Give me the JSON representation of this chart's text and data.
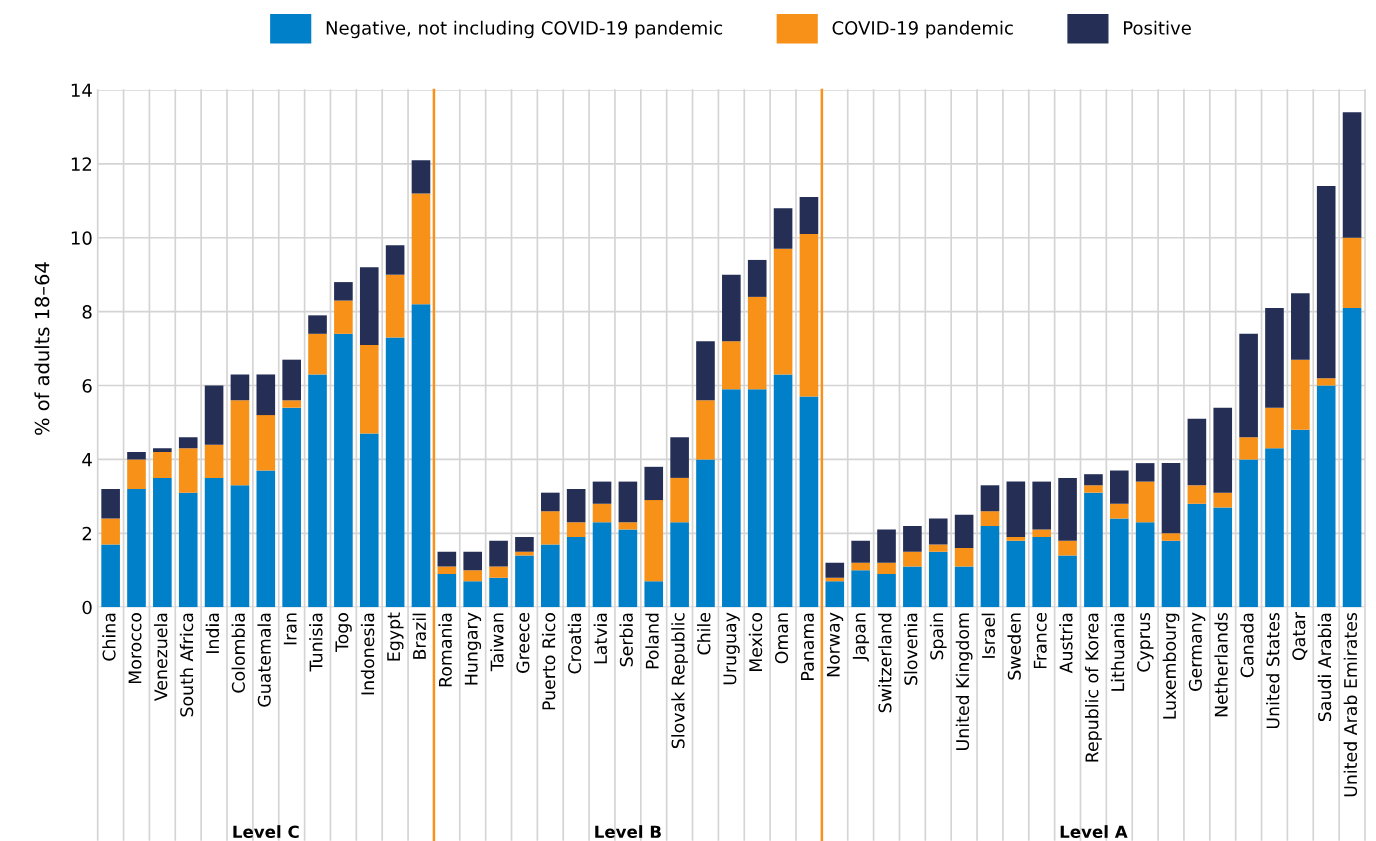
{
  "chart_data": {
    "type": "bar",
    "stacked": true,
    "ylabel": "% of adults 18–64",
    "categories": [
      "China",
      "Morocco",
      "Venezuela",
      "South Africa",
      "India",
      "Colombia",
      "Guatemala",
      "Iran",
      "Tunisia",
      "Togo",
      "Indonesia",
      "Egypt",
      "Brazil",
      "Romania",
      "Hungary",
      "Taiwan",
      "Greece",
      "Puerto Rico",
      "Croatia",
      "Latvia",
      "Serbia",
      "Poland",
      "Slovak Republic",
      "Chile",
      "Uruguay",
      "Mexico",
      "Oman",
      "Panama",
      "Norway",
      "Japan",
      "Switzerland",
      "Slovenia",
      "Spain",
      "United Kingdom",
      "Israel",
      "Sweden",
      "France",
      "Austria",
      "Republic of Korea",
      "Lithuania",
      "Cyprus",
      "Luxembourg",
      "Germany",
      "Netherlands",
      "Canada",
      "United States",
      "Qatar",
      "Saudi Arabia",
      "United Arab Emirates"
    ],
    "series": [
      {
        "name": "Negative, not including COVID-19 pandemic",
        "color": "#0080c8",
        "values": [
          1.7,
          3.2,
          3.5,
          3.1,
          3.5,
          3.3,
          3.7,
          5.4,
          6.3,
          7.4,
          4.7,
          7.3,
          8.2,
          0.9,
          0.7,
          0.8,
          1.4,
          1.7,
          1.9,
          2.3,
          2.1,
          0.7,
          2.3,
          4.0,
          5.9,
          5.9,
          6.3,
          5.7,
          0.7,
          1.0,
          0.9,
          1.1,
          1.5,
          1.1,
          2.2,
          1.8,
          1.9,
          1.4,
          3.1,
          2.4,
          2.3,
          1.8,
          2.8,
          2.7,
          4.0,
          4.3,
          4.8,
          6.0,
          8.1
        ]
      },
      {
        "name": "COVID-19 pandemic",
        "color": "#f89118",
        "values": [
          0.7,
          0.8,
          0.7,
          1.2,
          0.9,
          2.3,
          1.5,
          0.2,
          1.1,
          0.9,
          2.4,
          1.7,
          3.0,
          0.2,
          0.3,
          0.3,
          0.1,
          0.9,
          0.4,
          0.5,
          0.2,
          2.2,
          1.2,
          1.6,
          1.3,
          2.5,
          3.4,
          4.4,
          0.1,
          0.2,
          0.3,
          0.4,
          0.2,
          0.5,
          0.4,
          0.1,
          0.2,
          0.4,
          0.2,
          0.4,
          1.1,
          0.2,
          0.5,
          0.4,
          0.6,
          1.1,
          1.9,
          0.2,
          1.9
        ]
      },
      {
        "name": "Positive",
        "color": "#252f56",
        "values": [
          0.8,
          0.2,
          0.1,
          0.3,
          1.6,
          0.7,
          1.1,
          1.1,
          0.5,
          0.5,
          2.1,
          0.8,
          0.9,
          0.4,
          0.5,
          0.7,
          0.4,
          0.5,
          0.9,
          0.6,
          1.1,
          0.9,
          1.1,
          1.6,
          1.8,
          1.0,
          1.1,
          1.0,
          0.4,
          0.6,
          0.9,
          0.7,
          0.7,
          0.9,
          0.7,
          1.5,
          1.3,
          1.7,
          0.3,
          0.9,
          0.5,
          1.9,
          1.8,
          2.3,
          2.8,
          2.7,
          1.8,
          5.2,
          3.4
        ]
      }
    ],
    "ylim": [
      0,
      14
    ],
    "yticks": [
      0,
      2,
      4,
      6,
      8,
      10,
      12,
      14
    ],
    "grid": true,
    "legend": "top",
    "annotations": [
      "Level C",
      "Level B",
      "Level A"
    ]
  }
}
